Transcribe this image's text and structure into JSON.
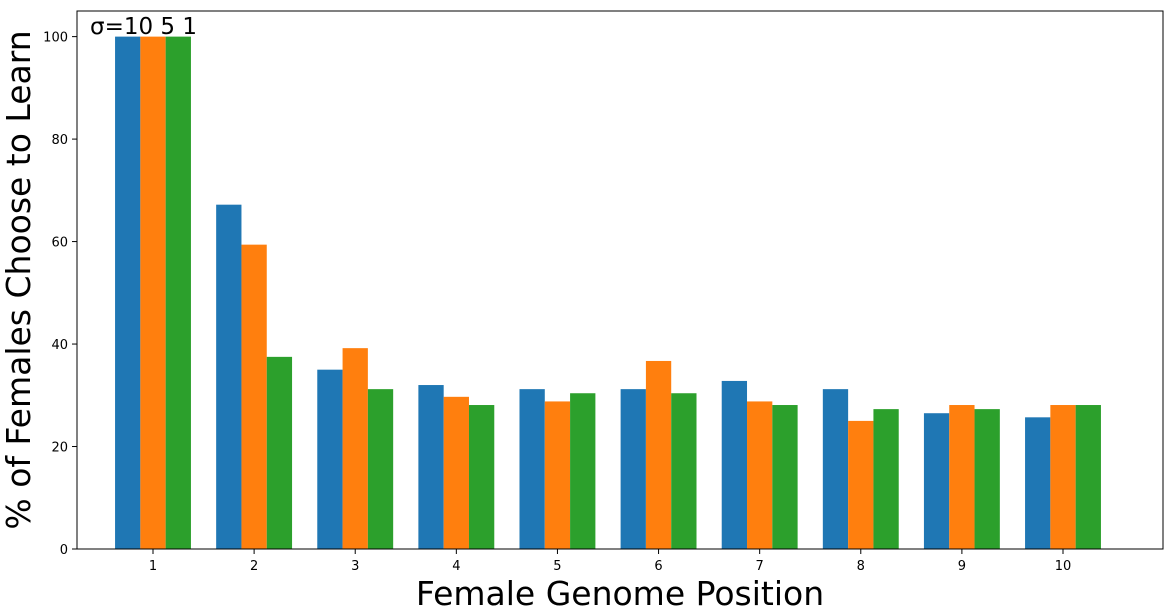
{
  "chart_data": {
    "type": "bar",
    "categories": [
      "1",
      "2",
      "3",
      "4",
      "5",
      "6",
      "7",
      "8",
      "9",
      "10"
    ],
    "series": [
      {
        "values": [
          100,
          67.2,
          35.0,
          32.0,
          31.2,
          31.2,
          32.8,
          31.2,
          26.5,
          25.7
        ]
      },
      {
        "values": [
          100,
          59.4,
          39.2,
          29.7,
          28.8,
          36.7,
          28.8,
          25.0,
          28.1,
          28.1
        ]
      },
      {
        "values": [
          100,
          37.5,
          31.2,
          28.1,
          30.4,
          30.4,
          28.1,
          27.3,
          27.3,
          28.1
        ]
      }
    ],
    "colors": [
      "#1f77b4",
      "#ff7f0e",
      "#2ca02c"
    ],
    "xlabel": "Female Genome Position",
    "ylabel": "% of Females Choose to Learn",
    "ylim": [
      0,
      105
    ],
    "yticks": [
      "0",
      "20",
      "40",
      "60",
      "80",
      "100"
    ],
    "annotation": "σ=10 5 1",
    "grid": false
  }
}
